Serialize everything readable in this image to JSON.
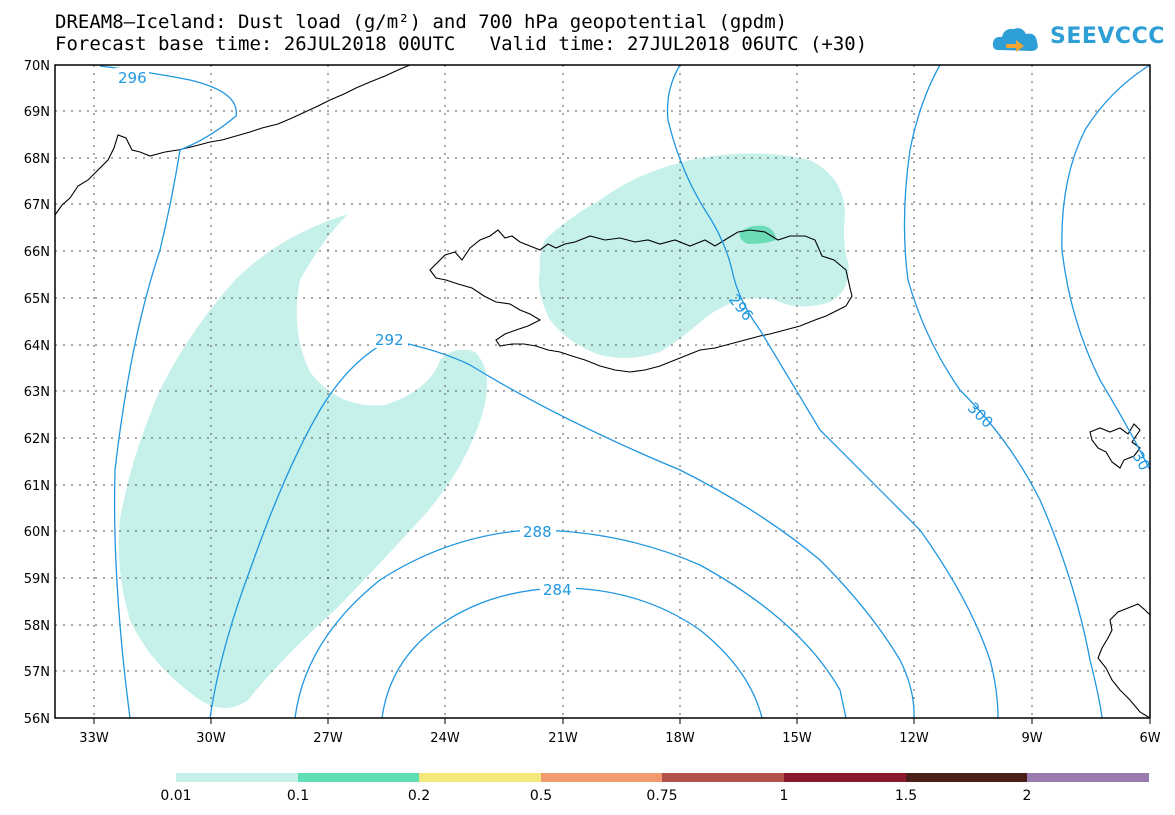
{
  "header": {
    "title_line1": "DREAM8—Iceland: Dust load (g/m²) and 700 hPa geopotential (gpdm)",
    "title_line2": "Forecast base time: 26JUL2018 00UTC   Valid time: 27JUL2018 06UTC (+30)",
    "logo_text": "SEEVCCC"
  },
  "axes": {
    "lat_labels": [
      "70N",
      "69N",
      "68N",
      "67N",
      "66N",
      "65N",
      "64N",
      "63N",
      "62N",
      "61N",
      "60N",
      "59N",
      "58N",
      "57N",
      "56N"
    ],
    "lon_labels": [
      "33W",
      "30W",
      "27W",
      "24W",
      "21W",
      "18W",
      "15W",
      "12W",
      "9W",
      "6W"
    ]
  },
  "contours": {
    "color": "#1f96e0",
    "labels": [
      "296",
      "292",
      "288",
      "284",
      "296",
      "300",
      "30"
    ]
  },
  "dust_colors": {
    "0.01": "#c6f1ea",
    "0.1": "#6cdcb8"
  },
  "legend": {
    "colors": [
      "#c6f1ea",
      "#5fddb5",
      "#f5e87a",
      "#ef9b6f",
      "#b3524a",
      "#8a1a2e",
      "#4a1f1a",
      "#9a7bb0"
    ],
    "labels": [
      "0.01",
      "0.1",
      "0.2",
      "0.5",
      "0.75",
      "1",
      "1.5",
      "2"
    ]
  }
}
